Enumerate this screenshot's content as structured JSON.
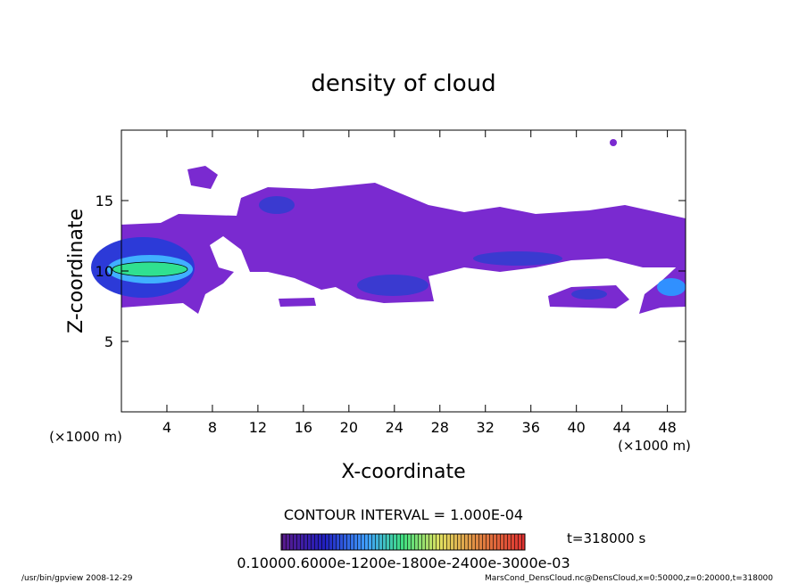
{
  "chart_data": {
    "type": "contour",
    "title": "density of cloud",
    "x_label": "X-coordinate",
    "y_label": "Z-coordinate",
    "x_unit_left": "(×1000 m)",
    "x_unit_right": "(×1000 m)",
    "xlim": [
      0,
      49.6
    ],
    "ylim": [
      0,
      20
    ],
    "xticks": [
      4,
      8,
      12,
      16,
      20,
      24,
      28,
      32,
      36,
      40,
      44,
      48
    ],
    "yticks": [
      5,
      10,
      15
    ],
    "contour_interval": "CONTOUR INTERVAL = 1.000E-04",
    "time": "t=318000 s",
    "colorbar_labels": "0.10000.6000e-1200e-1800e-2400e-3000e-03",
    "footer_left": "/usr/bin/gpview  2008-12-29",
    "footer_right": "MarsCond_DensCloud.nc@DensCloud,x=0:50000,z=0:20000,t=318000"
  }
}
